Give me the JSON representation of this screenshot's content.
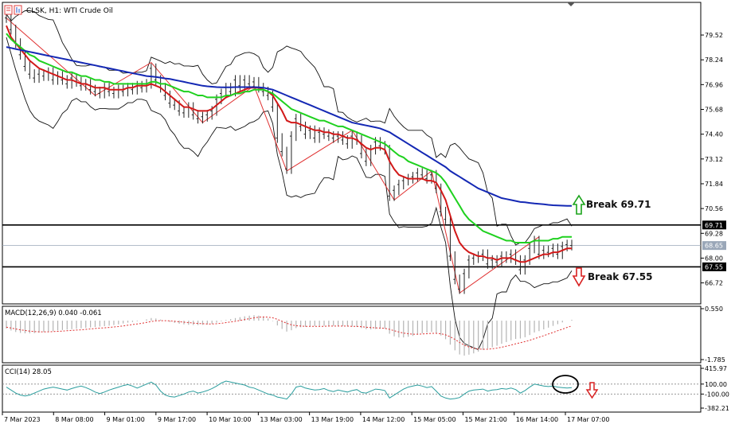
{
  "header": {
    "symbol_line": "CLSK, H1:  WTI Crude Oil"
  },
  "colors": {
    "ma_fast": "#d21919",
    "ma_mid": "#1fd11f",
    "ma_slow": "#1428b4",
    "price": "#222222",
    "zigzag": "#e03030",
    "bands": "#111111",
    "macd_hist": "#b4b4b4",
    "macd_signal": "#e03030",
    "cci": "#2a9d9d",
    "level": "#000000",
    "up_arrow": "#1aa31a",
    "down_arrow": "#d82020"
  },
  "annotations": {
    "break_up": "Break 69.71",
    "break_down": "Break 67.55"
  },
  "macd_label": "MACD(12,26,9) 0.040 -0.061",
  "cci_label": "CCI(14) 28.05",
  "chart_data": [
    {
      "type": "line",
      "name": "price",
      "ylim": [
        65.8,
        81.0
      ],
      "yticks": [
        "79.52",
        "78.24",
        "76.96",
        "75.68",
        "74.40",
        "73.12",
        "71.84",
        "70.56",
        "69.28",
        "68.00",
        "66.72"
      ],
      "ytick_values": [
        79.52,
        78.24,
        76.96,
        75.68,
        74.4,
        73.12,
        71.84,
        70.56,
        69.28,
        68.0,
        66.72
      ],
      "levels": [
        {
          "label": "69.71",
          "value": 69.71,
          "style": "solid-black"
        },
        {
          "label": "68.65",
          "value": 68.65,
          "style": "current-price"
        },
        {
          "label": "67.55",
          "value": 67.55,
          "style": "solid-black"
        }
      ],
      "xticks": [
        "7 Mar 2023",
        "8 Mar 08:00",
        "9 Mar 01:00",
        "9 Mar 17:00",
        "10 Mar 10:00",
        "13 Mar 03:00",
        "13 Mar 19:00",
        "14 Mar 12:00",
        "15 Mar 05:00",
        "15 Mar 21:00",
        "16 Mar 14:00",
        "17 Mar 07:00"
      ],
      "close": [
        80.4,
        79.8,
        79.1,
        78.5,
        77.9,
        77.5,
        77.3,
        77.5,
        77.4,
        77.6,
        77.2,
        77.4,
        77.2,
        77.0,
        77.3,
        77.1,
        76.9,
        77.0,
        76.7,
        76.6,
        76.5,
        76.8,
        76.6,
        76.5,
        76.7,
        76.6,
        76.8,
        76.7,
        76.9,
        76.8,
        77.0,
        77.8,
        77.2,
        76.8,
        76.4,
        76.0,
        75.9,
        75.6,
        75.5,
        75.8,
        75.4,
        75.2,
        75.3,
        75.4,
        75.6,
        76.2,
        76.5,
        76.8,
        76.6,
        77.2,
        76.9,
        77.2,
        77.0,
        77.1,
        76.8,
        76.6,
        76.4,
        75.8,
        74.2,
        73.5,
        72.6,
        74.3,
        75.2,
        74.8,
        74.4,
        74.6,
        74.2,
        74.5,
        74.4,
        74.3,
        74.2,
        74.3,
        74.1,
        73.9,
        74.3,
        74.1,
        73.4,
        73.0,
        73.6,
        74.0,
        73.8,
        73.6,
        71.2,
        71.5,
        71.8,
        72.0,
        72.1,
        72.2,
        72.4,
        72.3,
        72.1,
        72.3,
        71.6,
        70.4,
        70.0,
        68.1,
        66.9,
        66.4,
        67.2,
        67.9,
        68.0,
        68.1,
        68.2,
        67.7,
        67.9,
        67.8,
        68.1,
        68.0,
        68.2,
        67.9,
        67.4,
        67.9,
        68.5,
        68.9,
        68.2,
        68.4,
        68.3,
        68.5,
        68.2,
        68.6,
        68.7,
        68.65
      ],
      "series": [
        {
          "name": "",
          "values": [
            80.0,
            79.4,
            79.1,
            78.8,
            78.5,
            78.2,
            78.0,
            77.8,
            77.7,
            77.6,
            77.5,
            77.4,
            77.3,
            77.2,
            77.2,
            77.1,
            77.0,
            77.0,
            76.9,
            76.8,
            76.8,
            76.8,
            76.7,
            76.7,
            76.7,
            76.7,
            76.8,
            76.8,
            76.9,
            76.9,
            76.9,
            77.0,
            76.9,
            76.8,
            76.6,
            76.4,
            76.2,
            76.0,
            75.8,
            75.8,
            75.7,
            75.6,
            75.6,
            75.6,
            75.7,
            75.9,
            76.1,
            76.3,
            76.4,
            76.5,
            76.6,
            76.7,
            76.8,
            76.8,
            76.8,
            76.7,
            76.6,
            76.4,
            76.0,
            75.6,
            75.1,
            75.0,
            75.0,
            74.9,
            74.8,
            74.7,
            74.6,
            74.6,
            74.5,
            74.5,
            74.4,
            74.4,
            74.3,
            74.2,
            74.2,
            74.1,
            73.9,
            73.7,
            73.6,
            73.7,
            73.7,
            73.6,
            73.0,
            72.6,
            72.3,
            72.2,
            72.1,
            72.1,
            72.1,
            72.1,
            72.0,
            72.0,
            71.9,
            71.5,
            71.0,
            70.2,
            69.4,
            68.8,
            68.5,
            68.3,
            68.2,
            68.1,
            68.1,
            68.0,
            68.0,
            67.9,
            68.0,
            68.0,
            68.0,
            67.9,
            67.8,
            67.8,
            67.9,
            68.0,
            68.1,
            68.2,
            68.2,
            68.3,
            68.3,
            68.4,
            68.5,
            68.5
          ]
        },
        {
          "name": "",
          "values": [
            79.6,
            79.3,
            79.1,
            78.9,
            78.7,
            78.5,
            78.4,
            78.2,
            78.1,
            78.0,
            77.9,
            77.8,
            77.7,
            77.6,
            77.6,
            77.5,
            77.4,
            77.4,
            77.3,
            77.2,
            77.2,
            77.1,
            77.1,
            77.0,
            77.0,
            77.0,
            77.0,
            77.0,
            77.0,
            77.0,
            77.0,
            77.1,
            77.1,
            77.0,
            77.0,
            76.9,
            76.8,
            76.7,
            76.6,
            76.6,
            76.5,
            76.4,
            76.4,
            76.3,
            76.3,
            76.3,
            76.3,
            76.4,
            76.4,
            76.5,
            76.5,
            76.6,
            76.6,
            76.7,
            76.7,
            76.7,
            76.6,
            76.5,
            76.3,
            76.1,
            75.9,
            75.7,
            75.6,
            75.5,
            75.4,
            75.3,
            75.2,
            75.1,
            75.1,
            75.0,
            74.9,
            74.8,
            74.8,
            74.7,
            74.6,
            74.5,
            74.4,
            74.3,
            74.2,
            74.1,
            74.0,
            73.9,
            73.7,
            73.5,
            73.3,
            73.2,
            73.0,
            72.9,
            72.8,
            72.7,
            72.6,
            72.5,
            72.4,
            72.2,
            71.9,
            71.5,
            71.1,
            70.7,
            70.3,
            70.0,
            69.8,
            69.6,
            69.4,
            69.3,
            69.2,
            69.1,
            69.0,
            68.9,
            68.9,
            68.8,
            68.8,
            68.8,
            68.8,
            68.9,
            68.9,
            68.9,
            68.9,
            69.0,
            69.0,
            69.1,
            69.1,
            69.1
          ]
        },
        {
          "name": "",
          "values": [
            78.9,
            78.85,
            78.8,
            78.75,
            78.7,
            78.65,
            78.6,
            78.55,
            78.5,
            78.45,
            78.4,
            78.35,
            78.3,
            78.25,
            78.2,
            78.15,
            78.1,
            78.05,
            78.0,
            77.95,
            77.9,
            77.85,
            77.8,
            77.75,
            77.7,
            77.65,
            77.6,
            77.55,
            77.5,
            77.45,
            77.4,
            77.38,
            77.35,
            77.32,
            77.28,
            77.25,
            77.2,
            77.15,
            77.1,
            77.05,
            77.0,
            76.95,
            76.9,
            76.87,
            76.85,
            76.83,
            76.82,
            76.82,
            76.82,
            76.83,
            76.83,
            76.83,
            76.83,
            76.83,
            76.82,
            76.8,
            76.75,
            76.7,
            76.6,
            76.5,
            76.4,
            76.3,
            76.2,
            76.1,
            76.0,
            75.9,
            75.8,
            75.7,
            75.6,
            75.5,
            75.4,
            75.3,
            75.2,
            75.1,
            75.0,
            74.95,
            74.9,
            74.85,
            74.8,
            74.75,
            74.7,
            74.6,
            74.5,
            74.35,
            74.2,
            74.05,
            73.9,
            73.75,
            73.6,
            73.45,
            73.3,
            73.15,
            73.0,
            72.85,
            72.7,
            72.5,
            72.35,
            72.2,
            72.05,
            71.9,
            71.75,
            71.6,
            71.5,
            71.4,
            71.3,
            71.2,
            71.1,
            71.05,
            71.0,
            70.95,
            70.9,
            70.88,
            70.85,
            70.82,
            70.8,
            70.78,
            70.75,
            70.73,
            70.72,
            70.71,
            70.7,
            70.7
          ]
        }
      ],
      "zigzag": [
        [
          0,
          80.4
        ],
        [
          19,
          76.4
        ],
        [
          31,
          78.1
        ],
        [
          42,
          75.0
        ],
        [
          53,
          76.9
        ],
        [
          60,
          72.5
        ],
        [
          74,
          74.6
        ],
        [
          83,
          71.0
        ],
        [
          91,
          72.5
        ],
        [
          97,
          66.2
        ],
        [
          114,
          69.1
        ]
      ]
    },
    {
      "type": "bar",
      "name": "macd",
      "ylim": [
        -1.785,
        0.55
      ],
      "yticks": [
        "0.550",
        "-1.785"
      ],
      "ytick_values": [
        0.55,
        -1.785
      ],
      "histogram": [
        -0.36,
        -0.45,
        -0.52,
        -0.56,
        -0.58,
        -0.58,
        -0.57,
        -0.55,
        -0.52,
        -0.5,
        -0.48,
        -0.45,
        -0.43,
        -0.41,
        -0.39,
        -0.37,
        -0.35,
        -0.33,
        -0.31,
        -0.29,
        -0.27,
        -0.25,
        -0.23,
        -0.2,
        -0.17,
        -0.13,
        -0.09,
        -0.06,
        -0.03,
        0.0,
        0.06,
        0.12,
        0.1,
        0.05,
        -0.01,
        -0.06,
        -0.1,
        -0.14,
        -0.17,
        -0.19,
        -0.2,
        -0.2,
        -0.19,
        -0.17,
        -0.14,
        -0.09,
        -0.03,
        0.03,
        0.07,
        0.12,
        0.16,
        0.2,
        0.23,
        0.25,
        0.23,
        0.18,
        0.1,
        -0.02,
        -0.22,
        -0.38,
        -0.5,
        -0.44,
        -0.34,
        -0.3,
        -0.28,
        -0.26,
        -0.25,
        -0.24,
        -0.24,
        -0.24,
        -0.24,
        -0.24,
        -0.25,
        -0.27,
        -0.27,
        -0.29,
        -0.34,
        -0.39,
        -0.4,
        -0.38,
        -0.37,
        -0.37,
        -0.6,
        -0.72,
        -0.77,
        -0.77,
        -0.74,
        -0.7,
        -0.64,
        -0.58,
        -0.55,
        -0.52,
        -0.56,
        -0.68,
        -0.85,
        -1.1,
        -1.36,
        -1.55,
        -1.6,
        -1.56,
        -1.5,
        -1.42,
        -1.34,
        -1.28,
        -1.22,
        -1.15,
        -1.06,
        -0.98,
        -0.9,
        -0.84,
        -0.82,
        -0.76,
        -0.66,
        -0.54,
        -0.48,
        -0.4,
        -0.32,
        -0.24,
        -0.16,
        -0.08,
        0.0,
        0.04
      ],
      "signal": [
        -0.3,
        -0.34,
        -0.38,
        -0.42,
        -0.45,
        -0.48,
        -0.5,
        -0.51,
        -0.51,
        -0.51,
        -0.5,
        -0.49,
        -0.48,
        -0.46,
        -0.45,
        -0.43,
        -0.42,
        -0.4,
        -0.38,
        -0.36,
        -0.34,
        -0.33,
        -0.31,
        -0.29,
        -0.27,
        -0.24,
        -0.21,
        -0.18,
        -0.15,
        -0.12,
        -0.08,
        -0.04,
        -0.01,
        0.0,
        0.0,
        -0.01,
        -0.03,
        -0.05,
        -0.07,
        -0.09,
        -0.11,
        -0.13,
        -0.14,
        -0.15,
        -0.15,
        -0.14,
        -0.12,
        -0.09,
        -0.06,
        -0.03,
        0.01,
        0.05,
        0.09,
        0.13,
        0.16,
        0.17,
        0.16,
        0.13,
        0.06,
        -0.03,
        -0.12,
        -0.19,
        -0.23,
        -0.25,
        -0.26,
        -0.26,
        -0.26,
        -0.26,
        -0.26,
        -0.25,
        -0.25,
        -0.25,
        -0.25,
        -0.25,
        -0.26,
        -0.26,
        -0.28,
        -0.3,
        -0.32,
        -0.33,
        -0.34,
        -0.35,
        -0.4,
        -0.46,
        -0.52,
        -0.57,
        -0.6,
        -0.62,
        -0.62,
        -0.61,
        -0.6,
        -0.58,
        -0.58,
        -0.6,
        -0.65,
        -0.74,
        -0.86,
        -1.0,
        -1.12,
        -1.21,
        -1.27,
        -1.3,
        -1.31,
        -1.31,
        -1.29,
        -1.26,
        -1.22,
        -1.17,
        -1.12,
        -1.06,
        -1.01,
        -0.96,
        -0.9,
        -0.83,
        -0.76,
        -0.69,
        -0.61,
        -0.54,
        -0.46,
        -0.39,
        -0.31,
        -0.24
      ]
    },
    {
      "type": "line",
      "name": "cci",
      "ylim": [
        -382.21,
        415.97
      ],
      "yticks": [
        "415.97",
        "100.00",
        "-100.00",
        "-382.21"
      ],
      "ytick_values": [
        415.97,
        100.0,
        -100.0,
        -382.21
      ],
      "dotted_levels": [
        100,
        -100
      ],
      "values": [
        40,
        -20,
        -80,
        -120,
        -140,
        -120,
        -80,
        -40,
        0,
        20,
        40,
        20,
        0,
        -20,
        10,
        40,
        60,
        30,
        -10,
        -60,
        -90,
        -60,
        -20,
        10,
        40,
        70,
        90,
        60,
        20,
        60,
        100,
        140,
        80,
        -40,
        -120,
        -150,
        -160,
        -130,
        -100,
        -60,
        -40,
        -80,
        -60,
        -30,
        10,
        60,
        120,
        160,
        140,
        120,
        100,
        80,
        40,
        20,
        -20,
        -60,
        -100,
        -120,
        -160,
        -180,
        -200,
        -100,
        40,
        60,
        20,
        0,
        -20,
        -10,
        10,
        -30,
        -50,
        -20,
        -40,
        -60,
        -30,
        -10,
        -70,
        -80,
        -40,
        0,
        -10,
        -30,
        -180,
        -120,
        -60,
        0,
        40,
        60,
        80,
        60,
        30,
        50,
        -40,
        -140,
        -180,
        -200,
        -190,
        -170,
        -100,
        -40,
        -20,
        -10,
        0,
        -40,
        -20,
        -10,
        10,
        0,
        20,
        -10,
        -80,
        -30,
        40,
        100,
        80,
        60,
        50,
        60,
        40,
        30,
        20,
        28.05
      ]
    }
  ]
}
